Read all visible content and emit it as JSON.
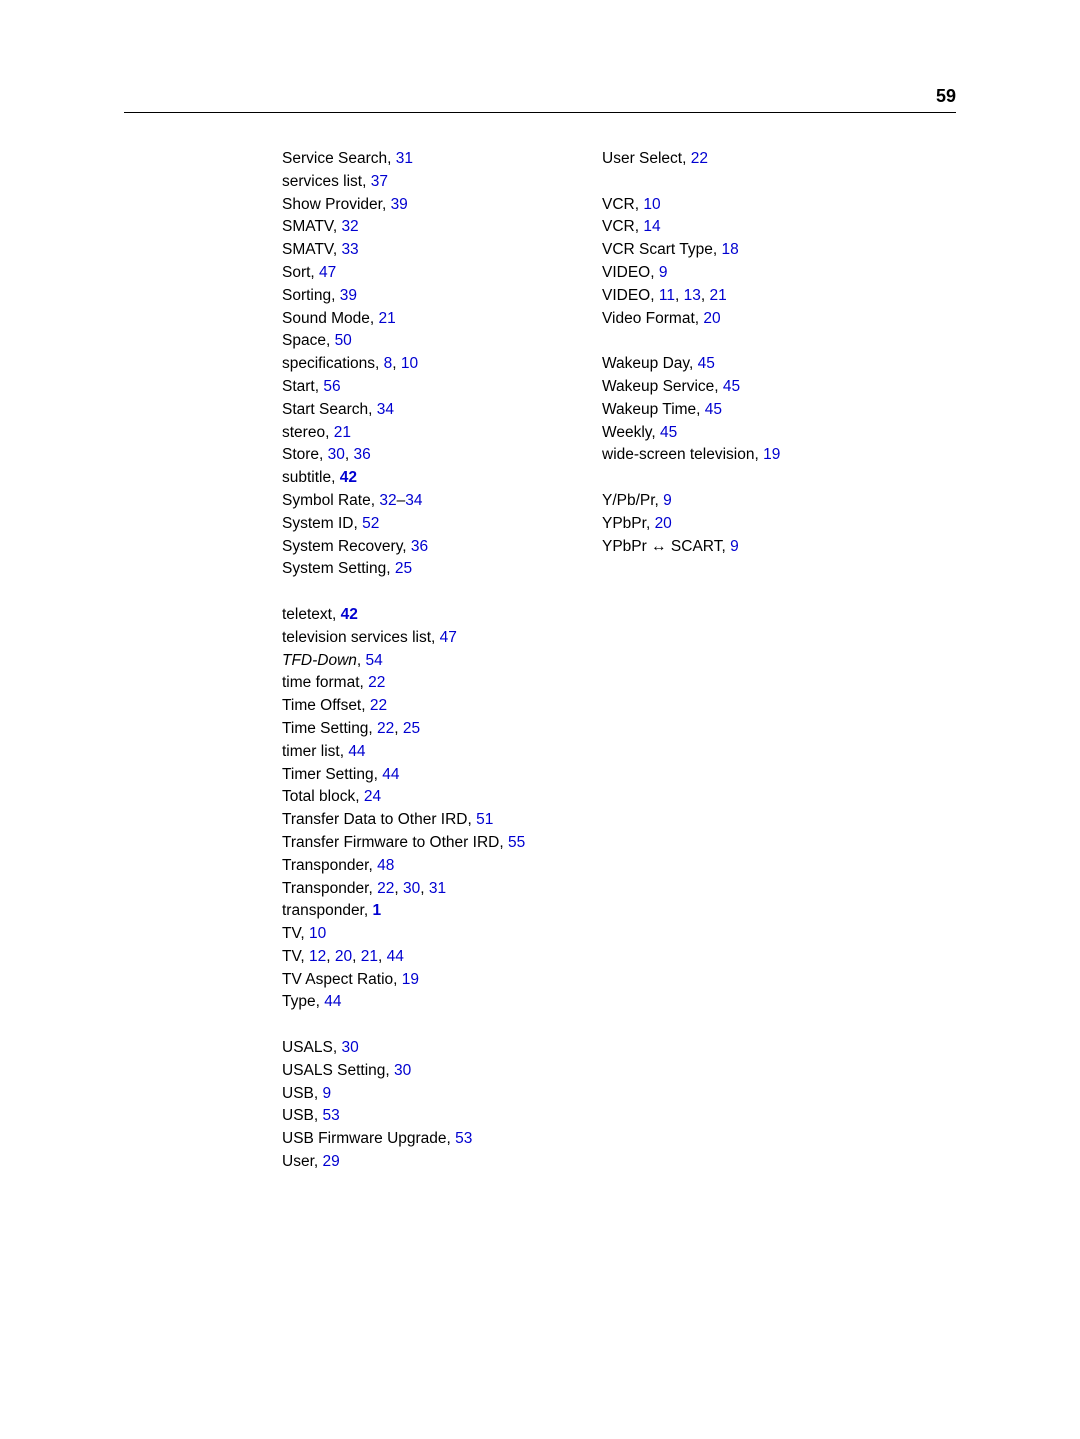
{
  "page_number": "59",
  "col1": [
    {
      "t": "entry",
      "text": "Service Search, ",
      "links": [
        "31"
      ]
    },
    {
      "t": "entry",
      "text": "services list, ",
      "links": [
        "37"
      ]
    },
    {
      "t": "entry",
      "text": "Show Provider, ",
      "links": [
        "39"
      ]
    },
    {
      "t": "entry",
      "text": "SMATV, ",
      "links": [
        "32"
      ]
    },
    {
      "t": "entry",
      "text": "SMATV, ",
      "links": [
        "33"
      ]
    },
    {
      "t": "entry",
      "text": "Sort, ",
      "links": [
        "47"
      ]
    },
    {
      "t": "entry",
      "text": "Sorting, ",
      "links": [
        "39"
      ]
    },
    {
      "t": "entry",
      "text": "Sound Mode, ",
      "links": [
        "21"
      ]
    },
    {
      "t": "entry",
      "text": "Space, ",
      "links": [
        "50"
      ]
    },
    {
      "t": "entry",
      "text": "specifications, ",
      "links": [
        "8",
        "10"
      ]
    },
    {
      "t": "entry",
      "text": "Start, ",
      "links": [
        "56"
      ]
    },
    {
      "t": "entry",
      "text": "Start Search, ",
      "links": [
        "34"
      ]
    },
    {
      "t": "entry",
      "text": "stereo, ",
      "links": [
        "21"
      ]
    },
    {
      "t": "entry",
      "text": "Store, ",
      "links": [
        "30",
        "36"
      ]
    },
    {
      "t": "entry",
      "text": "subtitle, ",
      "links": [
        "42"
      ],
      "bold": true
    },
    {
      "t": "entry",
      "text": "Symbol Rate, ",
      "range": [
        "32",
        "34"
      ]
    },
    {
      "t": "entry",
      "text": "System ID, ",
      "links": [
        "52"
      ]
    },
    {
      "t": "entry",
      "text": "System Recovery, ",
      "links": [
        "36"
      ]
    },
    {
      "t": "entry",
      "text": "System Setting, ",
      "links": [
        "25"
      ]
    },
    {
      "t": "gap"
    },
    {
      "t": "entry",
      "text": "teletext, ",
      "links": [
        "42"
      ],
      "bold": true
    },
    {
      "t": "entry",
      "text": "television services list, ",
      "links": [
        "47"
      ]
    },
    {
      "t": "entry",
      "text": "TFD-Down",
      "italic": true,
      "plain": ", ",
      "links": [
        "54"
      ]
    },
    {
      "t": "entry",
      "text": "time format, ",
      "links": [
        "22"
      ]
    },
    {
      "t": "entry",
      "text": "Time Offset, ",
      "links": [
        "22"
      ]
    },
    {
      "t": "entry",
      "text": "Time Setting, ",
      "links": [
        "22",
        "25"
      ]
    },
    {
      "t": "entry",
      "text": "timer list, ",
      "links": [
        "44"
      ]
    },
    {
      "t": "entry",
      "text": "Timer Setting, ",
      "links": [
        "44"
      ]
    },
    {
      "t": "entry",
      "text": "Total block, ",
      "links": [
        "24"
      ]
    },
    {
      "t": "entry",
      "text": "Transfer Data to Other IRD, ",
      "links": [
        "51"
      ]
    },
    {
      "t": "entry",
      "text": "Transfer Firmware to Other IRD, ",
      "links": [
        "55"
      ]
    },
    {
      "t": "entry",
      "text": "Transponder, ",
      "links": [
        "48"
      ]
    },
    {
      "t": "entry",
      "text": "Transponder, ",
      "links": [
        "22",
        "30",
        "31"
      ]
    },
    {
      "t": "entry",
      "text": "transponder, ",
      "links": [
        "1"
      ],
      "bold": true
    },
    {
      "t": "entry",
      "text": "TV, ",
      "links": [
        "10"
      ]
    },
    {
      "t": "entry",
      "text": "TV, ",
      "links": [
        "12",
        "20",
        "21",
        "44"
      ]
    },
    {
      "t": "entry",
      "text": "TV Aspect Ratio, ",
      "links": [
        "19"
      ]
    },
    {
      "t": "entry",
      "text": "Type, ",
      "links": [
        "44"
      ]
    },
    {
      "t": "gap"
    },
    {
      "t": "entry",
      "text": "USALS, ",
      "links": [
        "30"
      ]
    },
    {
      "t": "entry",
      "text": "USALS Setting, ",
      "links": [
        "30"
      ]
    },
    {
      "t": "entry",
      "text": "USB, ",
      "links": [
        "9"
      ]
    },
    {
      "t": "entry",
      "text": "USB, ",
      "links": [
        "53"
      ]
    },
    {
      "t": "entry",
      "text": "USB Firmware Upgrade, ",
      "links": [
        "53"
      ]
    },
    {
      "t": "entry",
      "text": "User, ",
      "links": [
        "29"
      ]
    }
  ],
  "col2": [
    {
      "t": "entry",
      "text": "User Select, ",
      "links": [
        "22"
      ]
    },
    {
      "t": "gap"
    },
    {
      "t": "entry",
      "text": "VCR, ",
      "links": [
        "10"
      ]
    },
    {
      "t": "entry",
      "text": "VCR, ",
      "links": [
        "14"
      ]
    },
    {
      "t": "entry",
      "text": "VCR Scart Type, ",
      "links": [
        "18"
      ]
    },
    {
      "t": "entry",
      "text": "VIDEO, ",
      "links": [
        "9"
      ]
    },
    {
      "t": "entry",
      "text": "VIDEO, ",
      "links": [
        "11",
        "13",
        "21"
      ]
    },
    {
      "t": "entry",
      "text": "Video Format, ",
      "links": [
        "20"
      ]
    },
    {
      "t": "gap"
    },
    {
      "t": "entry",
      "text": "Wakeup Day, ",
      "links": [
        "45"
      ]
    },
    {
      "t": "entry",
      "text": "Wakeup Service, ",
      "links": [
        "45"
      ]
    },
    {
      "t": "entry",
      "text": "Wakeup Time, ",
      "links": [
        "45"
      ]
    },
    {
      "t": "entry",
      "text": "Weekly, ",
      "links": [
        "45"
      ]
    },
    {
      "t": "entry",
      "text": "wide-screen television, ",
      "links": [
        "19"
      ]
    },
    {
      "t": "gap"
    },
    {
      "t": "entry",
      "text": "Y/Pb/Pr, ",
      "links": [
        "9"
      ]
    },
    {
      "t": "entry",
      "text": "YPbPr, ",
      "links": [
        "20"
      ]
    },
    {
      "t": "entry",
      "text": "YPbPr ↔ SCART, ",
      "links": [
        "9"
      ]
    }
  ]
}
